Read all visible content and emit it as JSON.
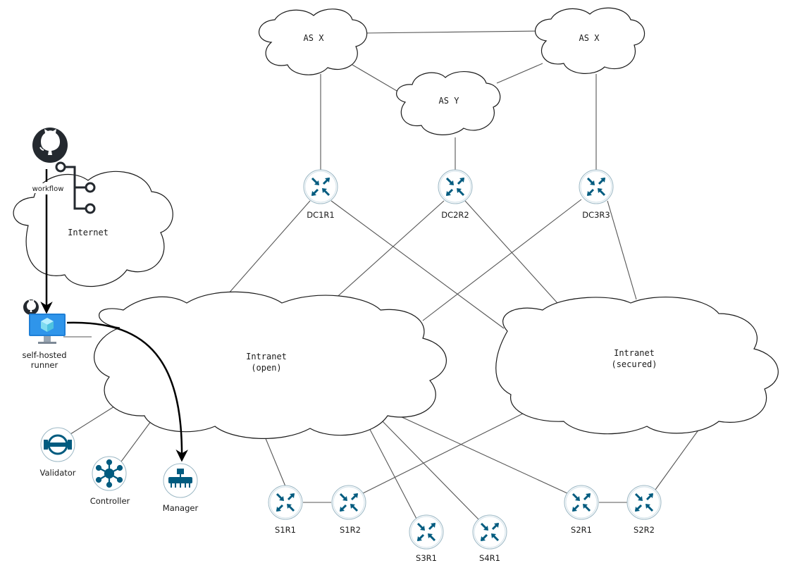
{
  "colors": {
    "router_blue": "#005b7f",
    "github_dark": "#24292f",
    "link_gray": "#555555",
    "runner_screen": "#1e7fd6",
    "runner_cube": "#7fdcf0"
  },
  "clouds": {
    "as_x_left": "AS X",
    "as_x_right": "AS X",
    "as_y": "AS Y",
    "internet": "Internet",
    "intranet_open": [
      "Intranet",
      "(open)"
    ],
    "intranet_secured": [
      "Intranet",
      "(secured)"
    ]
  },
  "routers": {
    "dc1r1": "DC1R1",
    "dc2r2": "DC2R2",
    "dc3r3": "DC3R3",
    "s1r1": "S1R1",
    "s1r2": "S1R2",
    "s3r1": "S3R1",
    "s4r1": "S4R1",
    "s2r1": "S2R1",
    "s2r2": "S2R2"
  },
  "services": {
    "validator": "Validator",
    "controller": "Controller",
    "manager": "Manager"
  },
  "workflow_label": "workflow",
  "runner_label": [
    "self-hosted",
    "runner"
  ],
  "icons": {
    "github": "github-icon",
    "workflow": "workflow-branch-icon",
    "runner": "vm-monitor-icon",
    "router": "router-icon",
    "validator": "validator-icon",
    "controller": "controller-hub-icon",
    "manager": "manager-switch-icon"
  }
}
